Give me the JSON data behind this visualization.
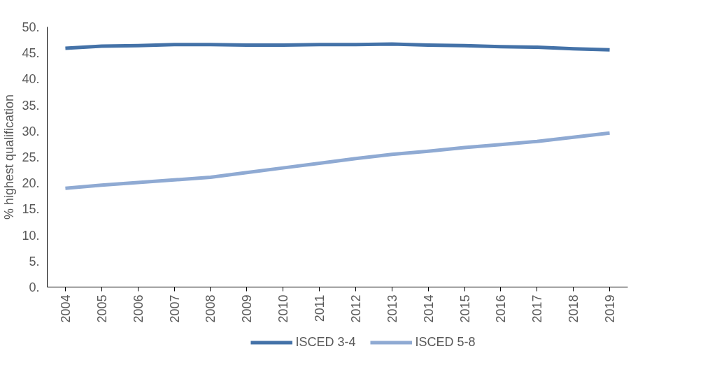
{
  "chart_data": {
    "type": "line",
    "ylabel": "% highest qualification",
    "categories": [
      "2004",
      "2005",
      "2006",
      "2007",
      "2008",
      "2009",
      "2010",
      "2011",
      "2012",
      "2013",
      "2014",
      "2015",
      "2016",
      "2017",
      "2018",
      "2019"
    ],
    "series": [
      {
        "name": "ISCED 3-4",
        "color": "#4472a8",
        "values": [
          45.9,
          46.3,
          46.4,
          46.6,
          46.6,
          46.5,
          46.5,
          46.6,
          46.6,
          46.7,
          46.5,
          46.4,
          46.2,
          46.1,
          45.8,
          45.6
        ]
      },
      {
        "name": "ISCED 5-8",
        "color": "#8faad3",
        "values": [
          19.0,
          19.6,
          20.1,
          20.6,
          21.1,
          22.0,
          22.9,
          23.8,
          24.7,
          25.5,
          26.1,
          26.8,
          27.4,
          28.0,
          28.8,
          29.6
        ]
      }
    ],
    "ylim": [
      0,
      50
    ],
    "yticks": [
      {
        "value": 0,
        "label": "0."
      },
      {
        "value": 5,
        "label": "5."
      },
      {
        "value": 10,
        "label": "10."
      },
      {
        "value": 15,
        "label": "15."
      },
      {
        "value": 20,
        "label": "20."
      },
      {
        "value": 25,
        "label": "25."
      },
      {
        "value": 30,
        "label": "30."
      },
      {
        "value": 35,
        "label": "35."
      },
      {
        "value": 40,
        "label": "40."
      },
      {
        "value": 45,
        "label": "45."
      },
      {
        "value": 50,
        "label": "50."
      }
    ],
    "grid": false,
    "legend": "bottom",
    "marker": "none",
    "line_style": "solid"
  }
}
